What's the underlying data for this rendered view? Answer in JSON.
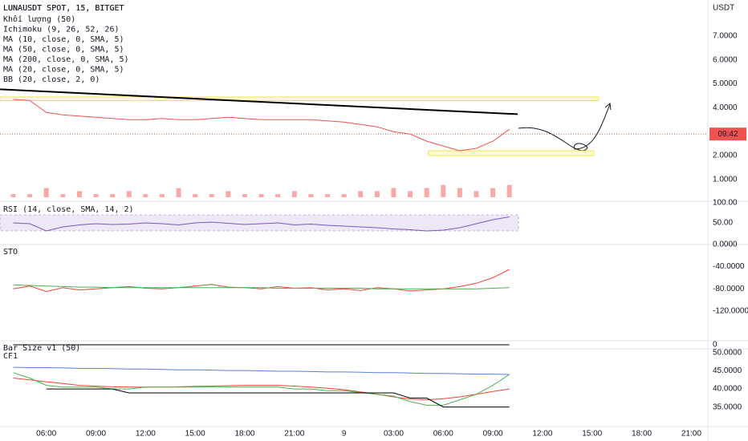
{
  "chart_data": [
    {
      "type": "line",
      "title": "LUNAUSDT SPOT, 15, BITGET",
      "indicators": [
        "Khối lượng (50)",
        "Ichimoku (9, 26, 52, 26)",
        "MA (10, close, 0, SMA, 5)",
        "MA (50, close, 0, SMA, 5)",
        "MA (200, close, 0, SMA, 5)",
        "MA (20, close, 0, SMA, 5)",
        "BB (20, close, 2, 0)"
      ],
      "unit": "USDT",
      "x": [
        4,
        5,
        6,
        7,
        8,
        9,
        10,
        11,
        12,
        13,
        14,
        15,
        16,
        17,
        18,
        19,
        20,
        21,
        22,
        23,
        24,
        25,
        26,
        27,
        28,
        29,
        30,
        31,
        32,
        33,
        34
      ],
      "xlim": [
        3.2,
        46
      ],
      "xticks": [
        {
          "value": 6,
          "label": "06:00"
        },
        {
          "value": 9,
          "label": "09:00"
        },
        {
          "value": 12,
          "label": "12:00"
        },
        {
          "value": 15,
          "label": "15:00"
        },
        {
          "value": 18,
          "label": "18:00"
        },
        {
          "value": 21,
          "label": "21:00"
        },
        {
          "value": 24,
          "label": "9"
        },
        {
          "value": 27,
          "label": "03:00"
        },
        {
          "value": 30,
          "label": "06:00"
        },
        {
          "value": 33,
          "label": "09:00"
        },
        {
          "value": 36,
          "label": "12:00"
        },
        {
          "value": 39,
          "label": "15:00"
        },
        {
          "value": 42,
          "label": "18:00"
        },
        {
          "value": 45,
          "label": "21:00"
        }
      ],
      "ylim": [
        0.12,
        8.51
      ],
      "yticks": [
        {
          "value": 7,
          "label": "7.0000"
        },
        {
          "value": 6,
          "label": "6.0000"
        },
        {
          "value": 5,
          "label": "5.0000"
        },
        {
          "value": 4,
          "label": "4.0000"
        },
        {
          "value": 2,
          "label": "2.0000"
        },
        {
          "value": 1,
          "label": "1.0000"
        }
      ],
      "series": [
        {
          "color": "#ef5350",
          "values": [
            4.35,
            4.3,
            3.8,
            3.7,
            3.65,
            3.6,
            3.55,
            3.5,
            3.5,
            3.55,
            3.5,
            3.5,
            3.55,
            3.6,
            3.55,
            3.5,
            3.5,
            3.5,
            3.5,
            3.45,
            3.4,
            3.3,
            3.2,
            3.0,
            2.9,
            2.6,
            2.4,
            2.2,
            2.3,
            2.6,
            3.1
          ]
        },
        {
          "color": "#000000",
          "x": [
            3.2,
            34.5
          ],
          "values": [
            4.77,
            3.73
          ]
        }
      ],
      "volume": {
        "color": "#f7a9a7",
        "ylim": [
          0,
          12
        ],
        "values": [
          1,
          1,
          3,
          1,
          2,
          1,
          1,
          2,
          1,
          1,
          3,
          1,
          1,
          2,
          1,
          1,
          1,
          2,
          1,
          1,
          1,
          2,
          2,
          3,
          2,
          3,
          4,
          3,
          2,
          3,
          4
        ]
      },
      "zones": [
        {
          "x": [
            3.2,
            39.4
          ],
          "y": [
            4.3,
            4.45
          ]
        },
        {
          "x": [
            29.1,
            39.1
          ],
          "y": [
            2.0,
            2.2
          ]
        }
      ],
      "last_price": 2.9,
      "countdown": "09:42"
    },
    {
      "type": "line",
      "title": "RSI (14, close, SMA, 14, 2)",
      "ylim": [
        0,
        102
      ],
      "yticks": [
        {
          "value": 100,
          "label": "100.00"
        },
        {
          "value": 50,
          "label": "50.00"
        }
      ],
      "band": [
        30,
        70
      ],
      "series": [
        {
          "color": "#7e57c2",
          "values": [
            50,
            48,
            30,
            40,
            45,
            48,
            46,
            47,
            50,
            48,
            45,
            50,
            52,
            49,
            46,
            48,
            50,
            45,
            47,
            44,
            42,
            40,
            38,
            35,
            33,
            30,
            32,
            38,
            48,
            58,
            65
          ]
        }
      ]
    },
    {
      "type": "line",
      "title": "STO",
      "ylim": [
        -174,
        0
      ],
      "yticks": [
        {
          "value": 0,
          "label": "0.0000"
        },
        {
          "value": -40,
          "label": "-40.0000"
        },
        {
          "value": -80,
          "label": "-80.0000"
        },
        {
          "value": -120,
          "label": "-120.0000"
        }
      ],
      "series": [
        {
          "color": "#f44336",
          "values": [
            -80,
            -75,
            -85,
            -78,
            -82,
            -80,
            -78,
            -76,
            -79,
            -80,
            -78,
            -75,
            -72,
            -77,
            -78,
            -80,
            -76,
            -79,
            -78,
            -82,
            -80,
            -83,
            -78,
            -80,
            -84,
            -82,
            -80,
            -76,
            -70,
            -60,
            -45
          ]
        },
        {
          "color": "#4caf50",
          "values": [
            -73,
            -74,
            -75,
            -76,
            -77,
            -77,
            -78,
            -78,
            -78,
            -78,
            -78,
            -78,
            -78,
            -78,
            -78,
            -78,
            -79,
            -79,
            -79,
            -79,
            -79,
            -79,
            -80,
            -80,
            -80,
            -80,
            -80,
            -80,
            -80,
            -79,
            -78
          ]
        }
      ]
    },
    {
      "type": "line",
      "title": "Bar Size v1 (50)",
      "ylim": [
        -1,
        1
      ],
      "yticks": [
        0
      ],
      "series": [
        {
          "color": "#000000",
          "values": [
            0,
            0,
            0,
            0,
            0,
            0,
            0,
            0,
            0,
            0,
            0,
            0,
            0,
            0,
            0,
            0,
            0,
            0,
            0,
            0,
            0,
            0,
            0,
            0,
            0,
            0,
            0,
            0,
            0,
            0,
            0
          ]
        }
      ]
    },
    {
      "type": "line",
      "title": "CF1",
      "ylim": [
        29.6,
        51.1
      ],
      "yticks": [
        {
          "value": 50,
          "label": "50.0000"
        },
        {
          "value": 45,
          "label": "45.0000"
        },
        {
          "value": 40,
          "label": "40.0000"
        },
        {
          "value": 35,
          "label": "35.0000"
        }
      ],
      "series": [
        {
          "color": "#5b7fdc",
          "values": [
            46,
            45.9,
            45.9,
            45.8,
            45.7,
            45.7,
            45.6,
            45.5,
            45.5,
            45.4,
            45.3,
            45.3,
            45.2,
            45.1,
            45.1,
            45,
            44.9,
            44.9,
            44.8,
            44.7,
            44.7,
            44.6,
            44.5,
            44.5,
            44.4,
            44.3,
            44.3,
            44.2,
            44.1,
            44.1,
            44
          ]
        },
        {
          "color": "#f44336",
          "values": [
            43,
            42.5,
            42,
            41.5,
            41,
            40.8,
            40.6,
            40.5,
            40.5,
            40.5,
            40.6,
            40.7,
            40.8,
            40.9,
            41,
            41,
            41,
            40.8,
            40.5,
            40.2,
            39.8,
            39.2,
            38.5,
            37.8,
            37.2,
            37,
            37.3,
            37.8,
            38.5,
            39.3,
            40
          ]
        },
        {
          "color": "#4caf50",
          "values": [
            44.5,
            43,
            41,
            40.5,
            40.5,
            40.5,
            40,
            40,
            40.5,
            40.5,
            40.5,
            40.5,
            40.5,
            40.5,
            40.5,
            40.5,
            40.5,
            40,
            40,
            39.5,
            39.5,
            39,
            38.5,
            38,
            36.5,
            35.5,
            35.5,
            37,
            38.5,
            41,
            44
          ]
        },
        {
          "color": "#000000",
          "values": [
            null,
            null,
            40,
            40,
            40,
            40,
            40,
            38.9,
            38.9,
            38.9,
            38.9,
            38.9,
            38.9,
            38.9,
            38.9,
            38.9,
            38.9,
            38.9,
            38.9,
            38.9,
            38.9,
            38.9,
            38.9,
            38.9,
            37.5,
            37.5,
            35,
            35,
            35,
            35,
            35
          ]
        }
      ]
    }
  ]
}
